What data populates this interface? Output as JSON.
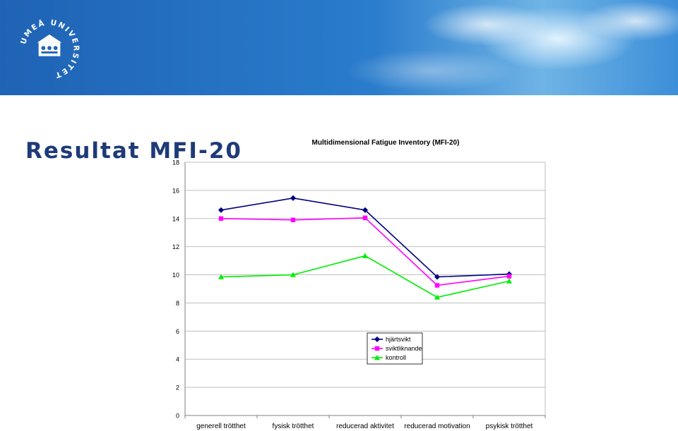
{
  "header": {
    "logo_text": "UMEÅ UNIVERSITET",
    "logo_icon": "university-crest-icon",
    "background_color": "#1b63b4"
  },
  "page": {
    "title": "Resultat MFI-20"
  },
  "chart_data": {
    "type": "line",
    "title": "Multidimensional Fatigue Inventory (MFI-20)",
    "categories": [
      "generell trötthet",
      "fysisk trötthet",
      "reducerad aktivitet",
      "reducerad motivation",
      "psykisk trötthet"
    ],
    "ylim": [
      0,
      18
    ],
    "yticks": [
      0,
      2,
      4,
      6,
      8,
      10,
      12,
      14,
      16,
      18
    ],
    "grid": true,
    "legend_position": "center-right",
    "series": [
      {
        "name": "hjärtsvikt",
        "values": [
          14.6,
          15.45,
          14.6,
          9.85,
          10.05
        ],
        "color": "#000080",
        "marker": "diamond"
      },
      {
        "name": "sviktliknande",
        "values": [
          14.0,
          13.9,
          14.05,
          9.25,
          9.9
        ],
        "color": "#ff00ff",
        "marker": "square"
      },
      {
        "name": "kontroll",
        "values": [
          9.85,
          10.0,
          11.35,
          8.4,
          9.55
        ],
        "color": "#00ee00",
        "marker": "triangle"
      }
    ]
  }
}
